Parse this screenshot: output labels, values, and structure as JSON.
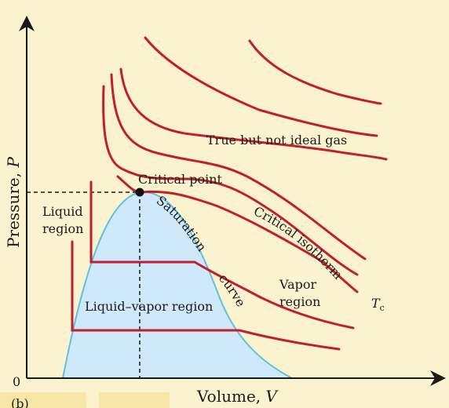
{
  "colors": {
    "background": "#fbf2cf",
    "isotherm": "#c0202e",
    "saturation_fill": "#cfe9fa",
    "saturation_stroke": "#5fc0e6",
    "axis": "#1a1a1a"
  },
  "axes": {
    "y_label": "Pressure, ",
    "y_symbol": "P",
    "x_label": "Volume, ",
    "x_symbol": "V",
    "origin": "0"
  },
  "labels": {
    "true_gas": "True but not ideal gas",
    "critical_point": "Critical point",
    "liquid_region_line1": "Liquid",
    "liquid_region_line2": "region",
    "saturation": "Saturation",
    "curve": "curve",
    "critical_isotherm": "Critical isotherm",
    "vapor_line1": "Vapor",
    "vapor_line2": "region",
    "liquid_vapor": "Liquid–vapor region",
    "tc_symbol": "T",
    "tc_subscript": "c",
    "panel": "(b)"
  }
}
